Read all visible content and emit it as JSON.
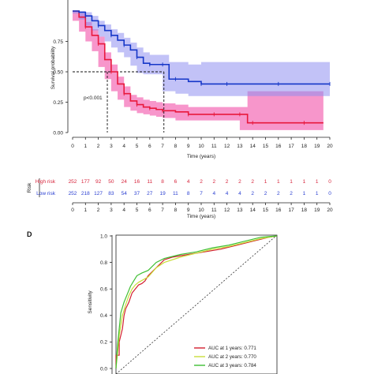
{
  "chart_data": [
    {
      "type": "line",
      "ylabel": "Survival probability",
      "xlabel": "Time (years)",
      "x_ticks": [
        0,
        1,
        2,
        3,
        4,
        5,
        6,
        7,
        8,
        9,
        10,
        11,
        12,
        13,
        14,
        15,
        16,
        17,
        18,
        19,
        20
      ],
      "y_ticks": [
        "0.00",
        "0.25",
        "0.50",
        "0.75"
      ],
      "xlim": [
        0,
        20
      ],
      "ylim": [
        0,
        1
      ],
      "annotation": "p<0.001",
      "median_lines": [
        {
          "x": 2.7,
          "y": 0.5
        },
        {
          "x": 7.1,
          "y": 0.5
        }
      ],
      "series": [
        {
          "color": "#e8183c",
          "band_color": "#f03fa0",
          "x": [
            0,
            0.5,
            1,
            1.5,
            2,
            2.5,
            3,
            3.5,
            4,
            4.5,
            5,
            5.5,
            6,
            6.5,
            7,
            8,
            9,
            10,
            11,
            12,
            13,
            13.6,
            14,
            16,
            18,
            19.5
          ],
          "y": [
            1.0,
            0.95,
            0.87,
            0.8,
            0.73,
            0.6,
            0.5,
            0.4,
            0.32,
            0.26,
            0.23,
            0.21,
            0.2,
            0.19,
            0.18,
            0.17,
            0.15,
            0.15,
            0.15,
            0.15,
            0.15,
            0.08,
            0.08,
            0.08,
            0.08,
            0.08
          ],
          "lower": [
            1.0,
            0.92,
            0.83,
            0.75,
            0.67,
            0.54,
            0.44,
            0.34,
            0.27,
            0.21,
            0.18,
            0.16,
            0.15,
            0.14,
            0.13,
            0.12,
            0.1,
            0.1,
            0.1,
            0.1,
            0.1,
            0.02,
            0.02,
            0.02,
            0.02,
            0.02
          ],
          "upper": [
            1.0,
            0.98,
            0.91,
            0.85,
            0.79,
            0.66,
            0.56,
            0.46,
            0.38,
            0.31,
            0.29,
            0.27,
            0.26,
            0.25,
            0.24,
            0.23,
            0.21,
            0.21,
            0.21,
            0.21,
            0.21,
            0.34,
            0.34,
            0.34,
            0.34,
            0.34
          ]
        },
        {
          "color": "#1536c8",
          "band_color": "#8f8ff0",
          "x": [
            0,
            0.5,
            1,
            1.5,
            2,
            2.5,
            3,
            3.5,
            4,
            4.5,
            5,
            5.5,
            6,
            6.5,
            7,
            7.5,
            8,
            9,
            10,
            11,
            12,
            14,
            16,
            18,
            20
          ],
          "y": [
            1.0,
            0.99,
            0.96,
            0.92,
            0.88,
            0.84,
            0.8,
            0.76,
            0.72,
            0.68,
            0.62,
            0.57,
            0.56,
            0.56,
            0.56,
            0.44,
            0.44,
            0.42,
            0.4,
            0.4,
            0.4,
            0.4,
            0.4,
            0.4,
            0.4
          ],
          "lower": [
            1.0,
            0.98,
            0.93,
            0.88,
            0.84,
            0.79,
            0.75,
            0.7,
            0.66,
            0.62,
            0.55,
            0.49,
            0.48,
            0.48,
            0.48,
            0.34,
            0.34,
            0.32,
            0.3,
            0.3,
            0.3,
            0.3,
            0.3,
            0.3,
            0.3
          ],
          "upper": [
            1.0,
            1.0,
            0.99,
            0.96,
            0.92,
            0.89,
            0.85,
            0.82,
            0.78,
            0.74,
            0.7,
            0.66,
            0.64,
            0.64,
            0.64,
            0.58,
            0.58,
            0.56,
            0.58,
            0.58,
            0.58,
            0.58,
            0.58,
            0.58,
            0.58
          ]
        }
      ]
    },
    {
      "type": "table",
      "ylabel": "Risk",
      "xlabel": "Time (years)",
      "x_ticks": [
        0,
        1,
        2,
        3,
        4,
        5,
        6,
        7,
        8,
        9,
        10,
        11,
        12,
        13,
        14,
        15,
        16,
        17,
        18,
        19,
        20
      ],
      "rows": [
        {
          "label": "High risk",
          "color": "#d7263d",
          "values": [
            "252",
            "177",
            "92",
            "50",
            "24",
            "16",
            "11",
            "8",
            "6",
            "4",
            "2",
            "2",
            "2",
            "2",
            "2",
            "1",
            "1",
            "1",
            "1",
            "1",
            "0"
          ]
        },
        {
          "label": "Low risk",
          "color": "#2a3fd1",
          "values": [
            "252",
            "218",
            "127",
            "83",
            "54",
            "37",
            "27",
            "19",
            "11",
            "8",
            "7",
            "4",
            "4",
            "4",
            "2",
            "2",
            "2",
            "2",
            "1",
            "1",
            "0"
          ]
        }
      ]
    },
    {
      "type": "line",
      "panel_label": "D",
      "ylabel": "Sensitivity",
      "y_ticks": [
        "0.0",
        "0.2",
        "0.4",
        "0.6",
        "0.8",
        "1.0"
      ],
      "xlim": [
        1,
        0
      ],
      "ylim": [
        0,
        1
      ],
      "series": [
        {
          "name": "AUC at 1 years: 0.771",
          "color": "#d21f2f",
          "fpr": [
            0,
            0,
            0.02,
            0.02,
            0.04,
            0.05,
            0.06,
            0.08,
            0.1,
            0.12,
            0.14,
            0.16,
            0.18,
            0.2,
            0.25,
            0.3,
            0.35,
            0.45,
            0.55,
            0.65,
            0.75,
            0.85,
            0.95,
            1.0
          ],
          "tpr": [
            0,
            0.1,
            0.1,
            0.2,
            0.3,
            0.4,
            0.45,
            0.5,
            0.57,
            0.6,
            0.63,
            0.64,
            0.66,
            0.7,
            0.76,
            0.82,
            0.84,
            0.86,
            0.88,
            0.9,
            0.93,
            0.96,
            0.99,
            1.0
          ]
        },
        {
          "name": "AUC at 2 years: 0.770",
          "color": "#c9dd3a",
          "fpr": [
            0,
            0.01,
            0.02,
            0.04,
            0.06,
            0.08,
            0.1,
            0.12,
            0.14,
            0.17,
            0.2,
            0.25,
            0.3,
            0.4,
            0.5,
            0.6,
            0.7,
            0.8,
            0.9,
            1.0
          ],
          "tpr": [
            0,
            0.12,
            0.25,
            0.4,
            0.48,
            0.55,
            0.6,
            0.63,
            0.65,
            0.67,
            0.69,
            0.76,
            0.8,
            0.84,
            0.87,
            0.9,
            0.92,
            0.95,
            0.98,
            1.0
          ]
        },
        {
          "name": "AUC at 3 years: 0.784",
          "color": "#3fbf33",
          "fpr": [
            0,
            0.01,
            0.02,
            0.03,
            0.05,
            0.07,
            0.09,
            0.11,
            0.13,
            0.16,
            0.2,
            0.25,
            0.3,
            0.4,
            0.5,
            0.6,
            0.7,
            0.8,
            0.9,
            1.0
          ],
          "tpr": [
            0,
            0.18,
            0.3,
            0.42,
            0.5,
            0.56,
            0.62,
            0.66,
            0.7,
            0.72,
            0.74,
            0.8,
            0.83,
            0.86,
            0.88,
            0.91,
            0.93,
            0.96,
            0.99,
            1.0
          ]
        }
      ]
    }
  ]
}
